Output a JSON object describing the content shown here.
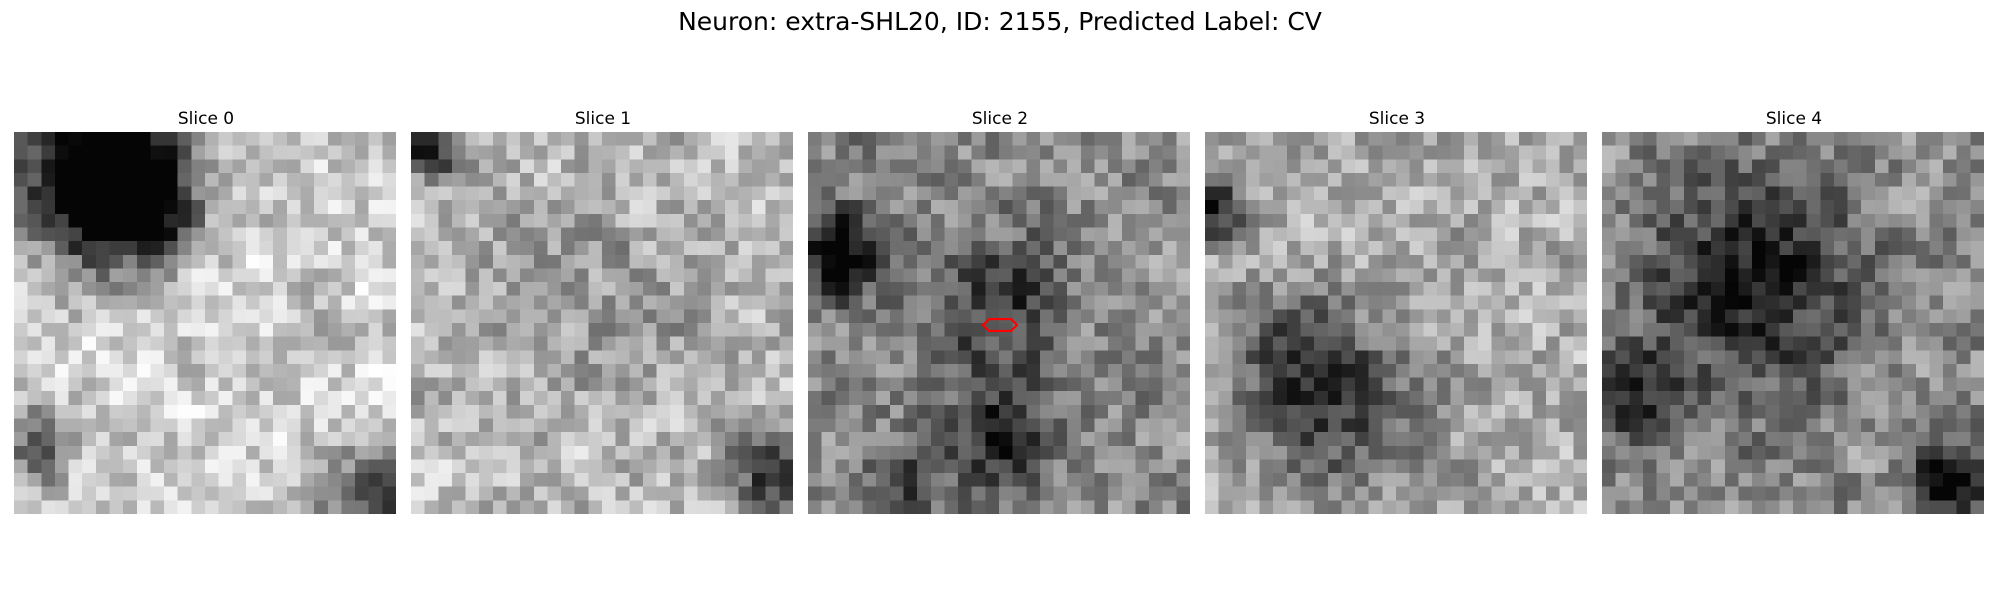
{
  "figure": {
    "title": "Neuron: extra-SHL20, ID: 2155, Predicted Label: CV"
  },
  "panels": [
    {
      "title": "Slice 0",
      "seed": 11,
      "dark_spots": [
        [
          0.22,
          0.1,
          0.22,
          0.95
        ],
        [
          0.3,
          0.18,
          0.14,
          0.85
        ],
        [
          0.06,
          0.82,
          0.1,
          0.45
        ],
        [
          0.97,
          0.97,
          0.16,
          0.55
        ]
      ],
      "base": 0.8
    },
    {
      "title": "Slice 1",
      "seed": 23,
      "dark_spots": [
        [
          0.05,
          0.05,
          0.08,
          0.6
        ],
        [
          0.96,
          0.9,
          0.12,
          0.55
        ],
        [
          0.5,
          0.45,
          0.3,
          0.15
        ]
      ],
      "base": 0.74
    },
    {
      "title": "Slice 2",
      "seed": 37,
      "dark_spots": [
        [
          0.08,
          0.32,
          0.12,
          0.55
        ],
        [
          0.5,
          0.45,
          0.18,
          0.35
        ],
        [
          0.5,
          0.8,
          0.14,
          0.45
        ],
        [
          0.25,
          0.9,
          0.1,
          0.35
        ]
      ],
      "base": 0.55
    },
    {
      "title": "Slice 3",
      "seed": 53,
      "dark_spots": [
        [
          0.02,
          0.2,
          0.08,
          0.65
        ],
        [
          0.35,
          0.72,
          0.22,
          0.45
        ],
        [
          0.2,
          0.55,
          0.16,
          0.25
        ]
      ],
      "base": 0.68
    },
    {
      "title": "Slice 4",
      "seed": 71,
      "dark_spots": [
        [
          0.4,
          0.4,
          0.28,
          0.45
        ],
        [
          0.9,
          0.9,
          0.1,
          0.55
        ],
        [
          0.1,
          0.7,
          0.14,
          0.3
        ]
      ],
      "base": 0.55
    }
  ],
  "marker": {
    "color": "#ff0000",
    "slice_index": 2
  }
}
